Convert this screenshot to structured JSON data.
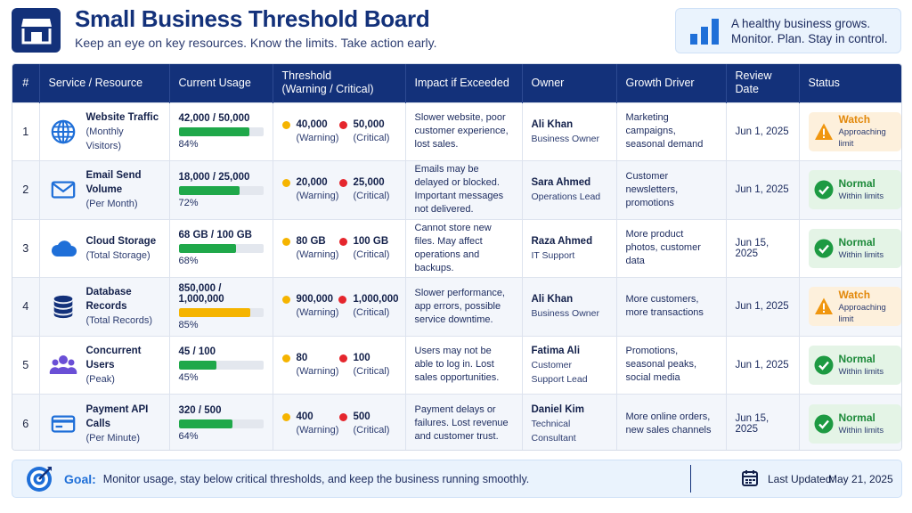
{
  "header": {
    "title": "Small Business Threshold Board",
    "subtitle": "Keep an eye on key resources. Know the limits. Take action early.",
    "motto_line1": "A healthy business grows.",
    "motto_line2": "Monitor. Plan. Stay in control."
  },
  "table": {
    "columns": {
      "num": "#",
      "service": "Service / Resource",
      "usage": "Current Usage",
      "threshold_line1": "Threshold",
      "threshold_line2": "(Warning / Critical)",
      "impact": "Impact if Exceeded",
      "owner": "Owner",
      "growth": "Growth Driver",
      "review": "Review Date",
      "status": "Status"
    },
    "rows": [
      {
        "num": "1",
        "icon": "globe-icon",
        "name": "Website Traffic",
        "sub": "(Monthly Visitors)",
        "usage": "42,000 / 50,000",
        "pct_label": "84%",
        "pct": 84,
        "bar_color": "#1fa84a",
        "warn_val": "40,000",
        "warn_lbl": "(Warning)",
        "crit_val": "50,000",
        "crit_lbl": "(Critical)",
        "impact": "Slower website, poor customer experience, lost sales.",
        "owner": "Ali Khan",
        "role": "Business Owner",
        "growth": "Marketing campaigns, seasonal demand",
        "review": "Jun 1, 2025",
        "status": "Watch",
        "status_type": "watch",
        "status_note": "Approaching limit"
      },
      {
        "num": "2",
        "icon": "mail-icon",
        "name": "Email Send Volume",
        "sub": "(Per Month)",
        "usage": "18,000 / 25,000",
        "pct_label": "72%",
        "pct": 72,
        "bar_color": "#1fa84a",
        "warn_val": "20,000",
        "warn_lbl": "(Warning)",
        "crit_val": "25,000",
        "crit_lbl": "(Critical)",
        "impact": "Emails may be delayed or blocked. Important messages not delivered.",
        "owner": "Sara Ahmed",
        "role": "Operations Lead",
        "growth": "Customer newsletters, promotions",
        "review": "Jun 1, 2025",
        "status": "Normal",
        "status_type": "normal",
        "status_note": "Within limits"
      },
      {
        "num": "3",
        "icon": "cloud-icon",
        "name": "Cloud Storage",
        "sub": "(Total Storage)",
        "usage": "68 GB / 100 GB",
        "pct_label": "68%",
        "pct": 68,
        "bar_color": "#1fa84a",
        "warn_val": "80 GB",
        "warn_lbl": "(Warning)",
        "crit_val": "100 GB",
        "crit_lbl": "(Critical)",
        "impact": "Cannot store new files. May affect operations and backups.",
        "owner": "Raza Ahmed",
        "role": "IT Support",
        "growth": "More product photos, customer data",
        "review": "Jun 15, 2025",
        "status": "Normal",
        "status_type": "normal",
        "status_note": "Within limits"
      },
      {
        "num": "4",
        "icon": "database-icon",
        "name": "Database Records",
        "sub": "(Total Records)",
        "usage": "850,000 / 1,000,000",
        "pct_label": "85%",
        "pct": 85,
        "bar_color": "#f5b400",
        "warn_val": "900,000",
        "warn_lbl": "(Warning)",
        "crit_val": "1,000,000",
        "crit_lbl": "(Critical)",
        "impact": "Slower performance, app errors, possible service downtime.",
        "owner": "Ali Khan",
        "role": "Business Owner",
        "growth": "More customers, more transactions",
        "review": "Jun 1, 2025",
        "status": "Watch",
        "status_type": "watch",
        "status_note": "Approaching limit"
      },
      {
        "num": "5",
        "icon": "users-icon",
        "name": "Concurrent Users",
        "sub": "(Peak)",
        "usage": "45 / 100",
        "pct_label": "45%",
        "pct": 45,
        "bar_color": "#1fa84a",
        "warn_val": "80",
        "warn_lbl": "(Warning)",
        "crit_val": "100",
        "crit_lbl": "(Critical)",
        "impact": "Users may not be able to log in. Lost sales opportunities.",
        "owner": "Fatima Ali",
        "role": "Customer Support Lead",
        "growth": "Promotions, seasonal peaks, social media",
        "review": "Jun 1, 2025",
        "status": "Normal",
        "status_type": "normal",
        "status_note": "Within limits"
      },
      {
        "num": "6",
        "icon": "credit-card-icon",
        "name": "Payment API Calls",
        "sub": "(Per Minute)",
        "usage": "320 / 500",
        "pct_label": "64%",
        "pct": 64,
        "bar_color": "#1fa84a",
        "warn_val": "400",
        "warn_lbl": "(Warning)",
        "crit_val": "500",
        "crit_lbl": "(Critical)",
        "impact": "Payment delays or failures. Lost revenue and customer trust.",
        "owner": "Daniel Kim",
        "role": "Technical Consultant",
        "growth": "More online orders, new sales channels",
        "review": "Jun 15, 2025",
        "status": "Normal",
        "status_type": "normal",
        "status_note": "Within limits"
      }
    ]
  },
  "footer": {
    "goal_label": "Goal:",
    "goal_text": "Monitor usage, stay below critical thresholds, and keep the business running smoothly.",
    "updated_label": "Last Updated:",
    "updated_value": "May 21, 2025"
  },
  "colors": {
    "brand": "#13317a",
    "accent": "#1f6fd8",
    "ok": "#1fa84a",
    "warn": "#f5b400",
    "critical": "#e5262d"
  }
}
